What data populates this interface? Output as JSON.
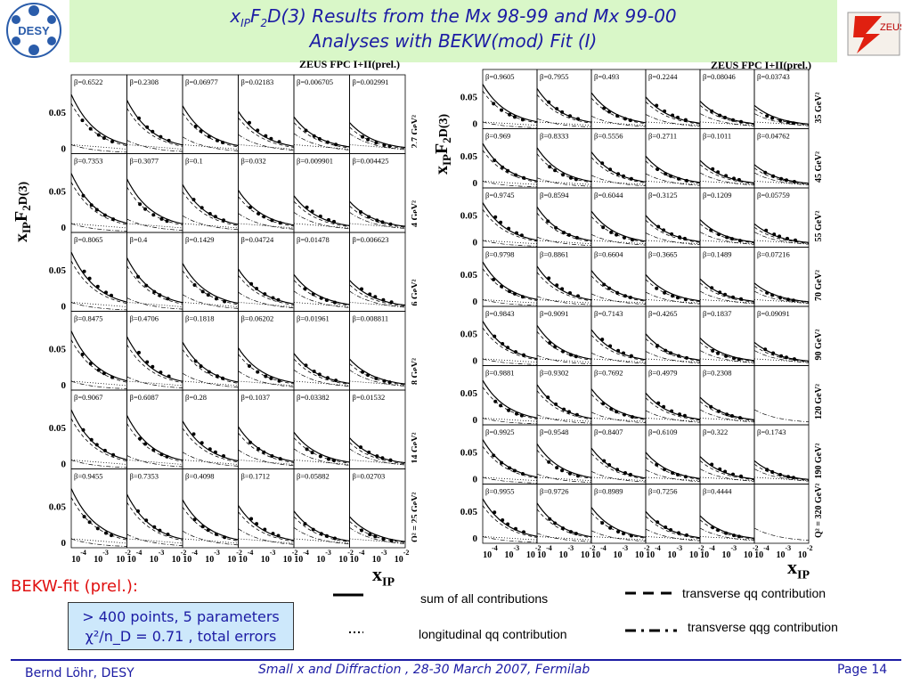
{
  "slide": {
    "title_prefix": "x",
    "title_sub": "IP",
    "title_mid": "F",
    "title_sub2": "2",
    "title_rest": "D(3)  Results from the Mx 98-99 and Mx 99-00",
    "title_line2": "Analyses with BEKW(mod) Fit  (I)",
    "logo_left": "DESY",
    "logo_right": "ZEUS",
    "bekw_label": "BEKW-fit (prel.):",
    "fit_line1": "> 400 points, 5 parameters",
    "fit_line2": "χ²/n_D = 0.71 , total errors",
    "footer_left": "Bernd Löhr, DESY",
    "footer_center": "Small x and Diffraction ,  28-30 March  2007,  Fermilab",
    "footer_right": "Page 14",
    "xaxis_label": "x",
    "xaxis_sub": "IP"
  },
  "legend": {
    "sum": "sum of all contributions",
    "longitudinal": "longitudinal qq contribution",
    "transverse_qq": "transverse qq contribution",
    "transverse_qqg": "transverse qqg contribution"
  },
  "chart_data": [
    {
      "type": "scatter",
      "title": "ZEUS FPC I+II(prel.)",
      "ylabel": "xIPF2D(3)",
      "ytick_labels": [
        "0.05",
        "0"
      ],
      "xtick_labels": [
        "10",
        "-4",
        "10",
        "-3",
        "10",
        "-2"
      ],
      "ylim": [
        0,
        0.1
      ],
      "q2_labels": [
        "2.7 GeV²",
        "4 GeV²",
        "6 GeV²",
        "8 GeV²",
        "14 GeV²",
        "Q² = 25 GeV²"
      ],
      "beta_labels": [
        [
          "β=0.6522",
          "β=0.2308",
          "β=0.06977",
          "β=0.02183",
          "β=0.006705",
          "β=0.002991"
        ],
        [
          "β=0.7353",
          "β=0.3077",
          "β=0.1",
          "β=0.032",
          "β=0.009901",
          "β=0.004425"
        ],
        [
          "β=0.8065",
          "β=0.4",
          "β=0.1429",
          "β=0.04724",
          "β=0.01478",
          "β=0.006623"
        ],
        [
          "β=0.8475",
          "β=0.4706",
          "β=0.1818",
          "β=0.06202",
          "β=0.01961",
          "β=0.008811"
        ],
        [
          "β=0.9067",
          "β=0.6087",
          "β=0.28",
          "β=0.1037",
          "β=0.03382",
          "β=0.01532"
        ],
        [
          "β=0.9455",
          "β=0.7353",
          "β=0.4098",
          "β=0.1712",
          "β=0.05882",
          "β=0.02703"
        ]
      ]
    },
    {
      "type": "scatter",
      "title": "ZEUS FPC I+II(prel.)",
      "ylabel": "xIPF2D(3)",
      "ytick_labels": [
        "0.05",
        "0"
      ],
      "xtick_labels": [
        "10",
        "-4",
        "10",
        "-2"
      ],
      "ylim": [
        0,
        0.1
      ],
      "q2_labels": [
        "35 GeV²",
        "45 GeV²",
        "55 GeV²",
        "70 GeV²",
        "90 GeV²",
        "120 GeV²",
        "190 GeV²",
        "Q² = 320 GeV²"
      ],
      "beta_labels": [
        [
          "β=0.9605",
          "β=0.7955",
          "β=0.493",
          "β=0.2244",
          "β=0.08046",
          "β=0.03743"
        ],
        [
          "β=0.969",
          "β=0.8333",
          "β=0.5556",
          "β=0.2711",
          "β=0.1011",
          "β=0.04762"
        ],
        [
          "β=0.9745",
          "β=0.8594",
          "β=0.6044",
          "β=0.3125",
          "β=0.1209",
          "β=0.05759"
        ],
        [
          "β=0.9798",
          "β=0.8861",
          "β=0.6604",
          "β=0.3665",
          "β=0.1489",
          "β=0.07216"
        ],
        [
          "β=0.9843",
          "β=0.9091",
          "β=0.7143",
          "β=0.4265",
          "β=0.1837",
          "β=0.09091"
        ],
        [
          "β=0.9881",
          "β=0.9302",
          "β=0.7692",
          "β=0.4979",
          "β=0.2308",
          ""
        ],
        [
          "β=0.9925",
          "β=0.9548",
          "β=0.8407",
          "β=0.6109",
          "β=0.322",
          "β=0.1743"
        ],
        [
          "β=0.9955",
          "β=0.9726",
          "β=0.8989",
          "β=0.7256",
          "β=0.4444",
          ""
        ]
      ]
    }
  ]
}
